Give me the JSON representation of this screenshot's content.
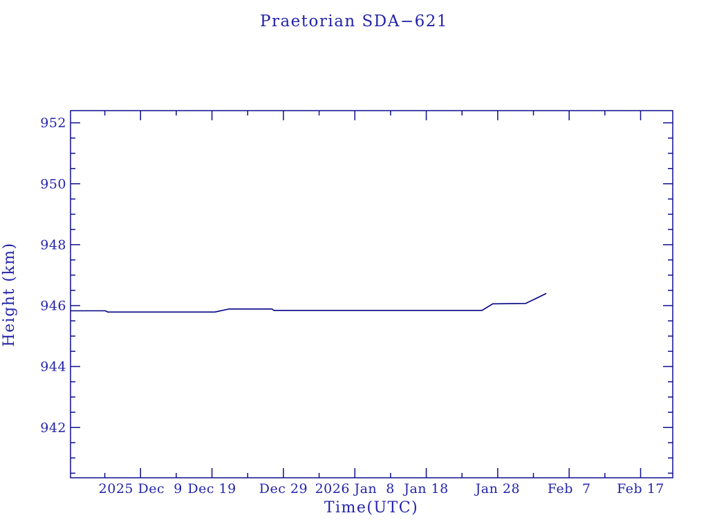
{
  "page": {
    "background": "#ffffff"
  },
  "chart_data": {
    "type": "line",
    "title": "Praetorian SDA−621",
    "xlabel": "Time(UTC)",
    "ylabel": "Height (km)",
    "grid": false,
    "legend": "none",
    "colors": {
      "axes": "#0d0d8e",
      "text": "#2323aa",
      "line": "#000080"
    },
    "x_axis": {
      "day_zero": "2025 Dec 9 00:00 UTC",
      "range_days": [
        -9.8,
        74.5
      ],
      "major_ticks": [
        {
          "day": 0,
          "label": "2025 Dec  9"
        },
        {
          "day": 10,
          "label": "Dec 19"
        },
        {
          "day": 20,
          "label": "Dec 29"
        },
        {
          "day": 30,
          "label": "2026 Jan  8"
        },
        {
          "day": 40,
          "label": "Jan 18"
        },
        {
          "day": 50,
          "label": "Jan 28"
        },
        {
          "day": 60,
          "label": "Feb  7"
        },
        {
          "day": 70,
          "label": "Feb 17"
        }
      ],
      "minor_tick_days": [
        -5,
        5,
        15,
        25,
        35,
        45,
        55,
        65
      ]
    },
    "y_axis": {
      "range": [
        940.35,
        952.4
      ],
      "major_ticks": [
        942,
        944,
        946,
        948,
        950,
        952
      ],
      "minor_step_km": 0.5
    },
    "series": [
      {
        "name": "height-km",
        "points_day_km": [
          [
            -9.8,
            945.83
          ],
          [
            -4.9,
            945.83
          ],
          [
            -4.6,
            945.79
          ],
          [
            10.4,
            945.79
          ],
          [
            12.4,
            945.89
          ],
          [
            18.4,
            945.89
          ],
          [
            18.7,
            945.84
          ],
          [
            47.8,
            945.84
          ],
          [
            49.3,
            946.06
          ],
          [
            53.9,
            946.07
          ],
          [
            55.5,
            946.25
          ],
          [
            56.8,
            946.4
          ]
        ]
      }
    ]
  }
}
